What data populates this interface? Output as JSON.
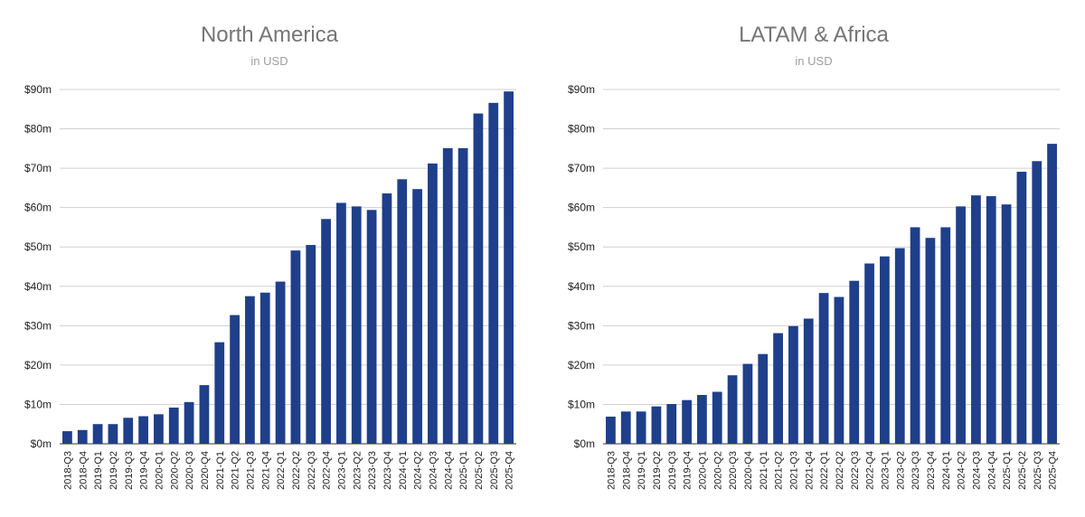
{
  "chart_data": [
    {
      "type": "bar",
      "title": "North America",
      "subtitle": "in USD",
      "xlabel": "",
      "ylabel": "",
      "ylim": [
        0,
        90
      ],
      "yticks": [
        "$0m",
        "$10m",
        "$20m",
        "$30m",
        "$40m",
        "$50m",
        "$60m",
        "$70m",
        "$80m",
        "$90m"
      ],
      "grid": true,
      "color": "#1f3f8a",
      "categories": [
        "2018-Q3",
        "2018-Q4",
        "2019-Q1",
        "2019-Q2",
        "2019-Q3",
        "2019-Q4",
        "2020-Q1",
        "2020-Q2",
        "2020-Q3",
        "2020-Q4",
        "2021-Q1",
        "2021-Q2",
        "2021-Q3",
        "2021-Q4",
        "2022-Q1",
        "2022-Q2",
        "2022-Q3",
        "2022-Q4",
        "2023-Q1",
        "2023-Q2",
        "2023-Q3",
        "2023-Q4",
        "2024-Q1",
        "2024-Q2",
        "2024-Q3",
        "2024-Q4",
        "2025-Q1",
        "2025-Q2",
        "2025-Q3",
        "2025-Q4"
      ],
      "values": [
        3.2,
        3.5,
        5.0,
        5.0,
        6.6,
        7.0,
        7.5,
        9.2,
        10.6,
        14.9,
        25.8,
        32.7,
        37.5,
        38.4,
        41.2,
        49.1,
        50.5,
        57.1,
        61.2,
        60.3,
        59.4,
        63.6,
        67.2,
        64.7,
        71.2,
        75.1,
        75.1,
        83.9,
        86.6,
        89.5
      ]
    },
    {
      "type": "bar",
      "title": "LATAM & Africa",
      "subtitle": "in USD",
      "xlabel": "",
      "ylabel": "",
      "ylim": [
        0,
        90
      ],
      "yticks": [
        "$0m",
        "$10m",
        "$20m",
        "$30m",
        "$40m",
        "$50m",
        "$60m",
        "$70m",
        "$80m",
        "$90m"
      ],
      "grid": true,
      "color": "#1f3f8a",
      "categories": [
        "2018-Q3",
        "2018-Q4",
        "2019-Q1",
        "2019-Q2",
        "2019-Q3",
        "2019-Q4",
        "2020-Q1",
        "2020-Q2",
        "2020-Q3",
        "2020-Q4",
        "2021-Q1",
        "2021-Q2",
        "2021-Q3",
        "2021-Q4",
        "2022-Q1",
        "2022-Q2",
        "2022-Q3",
        "2022-Q4",
        "2023-Q1",
        "2023-Q2",
        "2023-Q3",
        "2023-Q4",
        "2024-Q1",
        "2024-Q2",
        "2024-Q3",
        "2024-Q4",
        "2025-Q1",
        "2025-Q2",
        "2025-Q3",
        "2025-Q4"
      ],
      "values": [
        6.9,
        8.2,
        8.2,
        9.5,
        10.1,
        11.1,
        12.4,
        13.2,
        17.4,
        20.3,
        22.8,
        28.1,
        29.9,
        31.8,
        38.3,
        37.3,
        41.4,
        45.8,
        47.6,
        49.7,
        55.0,
        52.3,
        55.0,
        60.3,
        63.1,
        62.9,
        60.8,
        69.1,
        71.8,
        76.2
      ]
    }
  ]
}
